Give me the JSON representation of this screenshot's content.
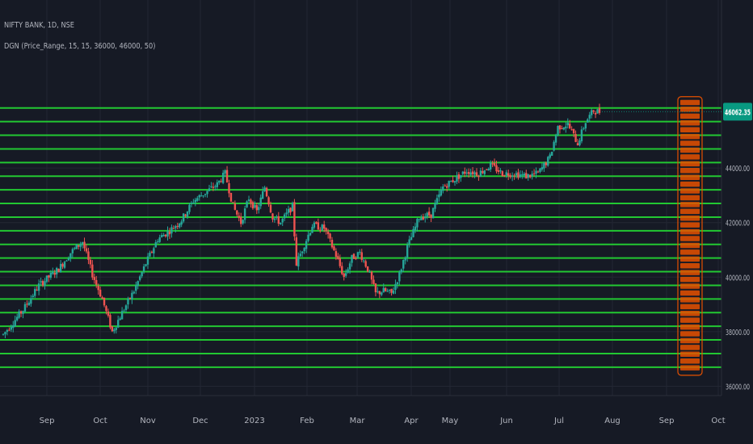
{
  "header": {
    "symbol_line": "NIFTY BANK, 1D, NSE",
    "indicator_line": "DGN (Price_Range, 15, 15, 36000, 46000, 50)"
  },
  "colors": {
    "background": "#161a25",
    "grid": "#232733",
    "level_line": "#22c832",
    "candle_up": "#26a69a",
    "candle_down": "#ef5350",
    "label_box": "#e65100",
    "price_badge": "#089981",
    "axis_text": "#b2b5be"
  },
  "chart_data": {
    "type": "candlestick",
    "symbol": "NIFTY BANK",
    "interval": "1D",
    "exchange": "NSE",
    "last_price": "46062.35",
    "y_ticks": [
      "44000.00",
      "42000.00",
      "40000.00",
      "38000.00",
      "36000.00"
    ],
    "x_ticks": [
      "Sep",
      "Oct",
      "Nov",
      "Dec",
      "2023",
      "Feb",
      "Mar",
      "Apr",
      "May",
      "Jun",
      "Jul",
      "Aug",
      "Sep",
      "Oct"
    ],
    "level_lines": [
      46200,
      45700,
      45200,
      44700,
      44200,
      43700,
      43200,
      42700,
      42200,
      41700,
      41200,
      40700,
      40200,
      39700,
      39200,
      38700,
      38200,
      37700,
      37200,
      36700
    ],
    "trend_anchors": [
      [
        0,
        37900
      ],
      [
        10,
        38800
      ],
      [
        18,
        39700
      ],
      [
        28,
        40300
      ],
      [
        34,
        40900
      ],
      [
        40,
        41300
      ],
      [
        45,
        40100
      ],
      [
        50,
        39200
      ],
      [
        55,
        38000
      ],
      [
        60,
        38700
      ],
      [
        66,
        39500
      ],
      [
        72,
        40500
      ],
      [
        78,
        41400
      ],
      [
        84,
        41700
      ],
      [
        90,
        42100
      ],
      [
        96,
        42800
      ],
      [
        102,
        43100
      ],
      [
        108,
        43400
      ],
      [
        112,
        43800
      ],
      [
        116,
        42600
      ],
      [
        120,
        42000
      ],
      [
        124,
        42900
      ],
      [
        128,
        42400
      ],
      [
        132,
        43300
      ],
      [
        136,
        42200
      ],
      [
        140,
        42000
      ],
      [
        146,
        42600
      ],
      [
        148,
        40500
      ],
      [
        152,
        41200
      ],
      [
        156,
        41900
      ],
      [
        162,
        41800
      ],
      [
        168,
        40800
      ],
      [
        172,
        40000
      ],
      [
        176,
        40700
      ],
      [
        180,
        40900
      ],
      [
        184,
        40300
      ],
      [
        188,
        39400
      ],
      [
        192,
        39500
      ],
      [
        196,
        39400
      ],
      [
        200,
        40100
      ],
      [
        204,
        41100
      ],
      [
        210,
        42200
      ],
      [
        216,
        42300
      ],
      [
        222,
        43300
      ],
      [
        228,
        43600
      ],
      [
        234,
        43900
      ],
      [
        240,
        43800
      ],
      [
        246,
        44100
      ],
      [
        252,
        43800
      ],
      [
        258,
        43800
      ],
      [
        264,
        43700
      ],
      [
        270,
        43800
      ],
      [
        276,
        44400
      ],
      [
        280,
        45500
      ],
      [
        285,
        45600
      ],
      [
        290,
        44900
      ],
      [
        294,
        45700
      ],
      [
        298,
        46100
      ],
      [
        301,
        46062
      ]
    ]
  }
}
